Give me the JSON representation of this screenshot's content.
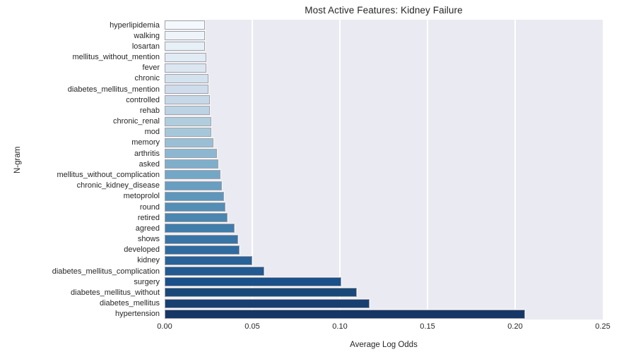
{
  "chart_data": {
    "type": "bar",
    "orientation": "horizontal",
    "title": "Most Active Features: Kidney Failure",
    "xlabel": "Average Log Odds",
    "ylabel": "N-gram",
    "xlim": [
      0,
      0.25
    ],
    "x_tick_values": [
      0,
      0.05,
      0.1,
      0.15,
      0.2,
      0.25
    ],
    "x_tick_labels": [
      "0.00",
      "0.05",
      "0.10",
      "0.15",
      "0.20",
      "0.25"
    ],
    "legend": "none",
    "grid": "vertical-white-gridlines",
    "plot_background": "#eaeaf2",
    "gridline_color": "#ffffff",
    "bar_edge_color": "#a2a2aa",
    "text_color": "#262626",
    "categories": [
      "hyperlipidemia",
      "walking",
      "losartan",
      "mellitus_without_mention",
      "fever",
      "chronic",
      "diabetes_mellitus_mention",
      "controlled",
      "rehab",
      "chronic_renal",
      "mod",
      "memory",
      "arthritis",
      "asked",
      "mellitus_without_complication",
      "chronic_kidney_disease",
      "metoprolol",
      "round",
      "retired",
      "agreed",
      "shows",
      "developed",
      "kidney",
      "diabetes_mellitus_complication",
      "surgery",
      "diabetes_mellitus_without",
      "diabetes_mellitus",
      "hypertension"
    ],
    "values": [
      0.022,
      0.022,
      0.022,
      0.023,
      0.023,
      0.024,
      0.024,
      0.025,
      0.025,
      0.026,
      0.026,
      0.027,
      0.029,
      0.03,
      0.031,
      0.032,
      0.033,
      0.034,
      0.035,
      0.039,
      0.041,
      0.042,
      0.049,
      0.056,
      0.1,
      0.109,
      0.116,
      0.205
    ],
    "bar_colors": [
      "#f4f9fd",
      "#eef4fa",
      "#e8f0f7",
      "#e1ebf4",
      "#dbe6f1",
      "#d4e2ee",
      "#cedceb",
      "#c6d8e7",
      "#bbd3e3",
      "#b0cdde",
      "#a6c7d9",
      "#99bfd4",
      "#8cb7d0",
      "#7faecb",
      "#73a7c6",
      "#689ec0",
      "#5e97bb",
      "#538eb6",
      "#4a86b0",
      "#417daa",
      "#3874a5",
      "#306b9f",
      "#296298",
      "#225a91",
      "#1b518a",
      "#194979",
      "#174071",
      "#163765"
    ]
  }
}
